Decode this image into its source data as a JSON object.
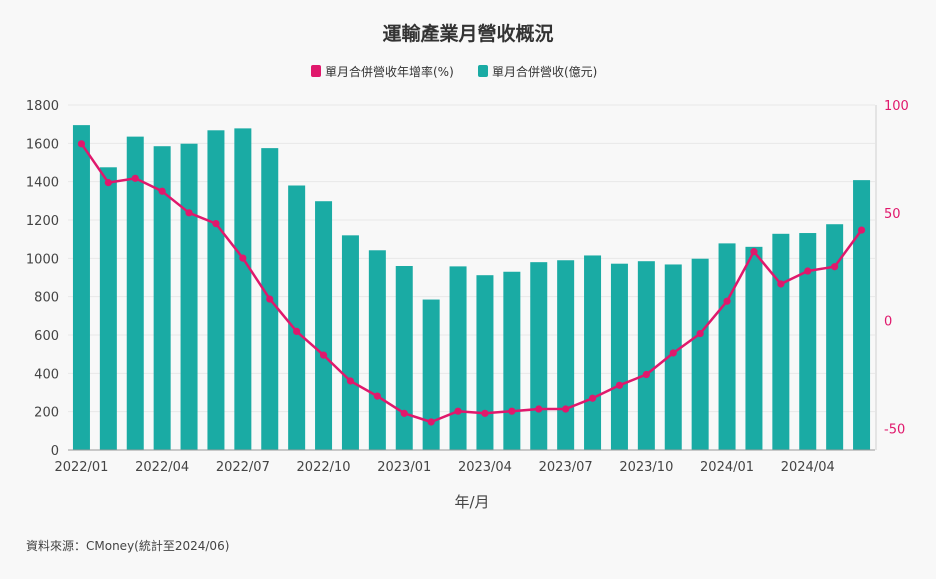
{
  "chart_data": {
    "type": "bar+line",
    "title": "運輸產業月營收概況",
    "xlabel": "年/月",
    "source": "資料來源：CMoney(統計至2024/06)",
    "categories": [
      "2022/01",
      "2022/02",
      "2022/03",
      "2022/04",
      "2022/05",
      "2022/06",
      "2022/07",
      "2022/08",
      "2022/09",
      "2022/10",
      "2022/11",
      "2022/12",
      "2023/01",
      "2023/02",
      "2023/03",
      "2023/04",
      "2023/05",
      "2023/06",
      "2023/07",
      "2023/08",
      "2023/09",
      "2023/10",
      "2023/11",
      "2023/12",
      "2024/01",
      "2024/02",
      "2024/03",
      "2024/04",
      "2024/05",
      "2024/06"
    ],
    "x_tick_labels": [
      "2022/01",
      "2022/04",
      "2022/07",
      "2022/10",
      "2023/01",
      "2023/04",
      "2023/07",
      "2023/10",
      "2024/01",
      "2024/04"
    ],
    "series": [
      {
        "name": "單月合併營收年增率(%)",
        "type": "line",
        "axis": "right",
        "color": "#e0186c",
        "values": [
          82,
          64,
          66,
          60,
          50,
          45,
          29,
          10,
          -5,
          -16,
          -28,
          -35,
          -43,
          -47,
          -42,
          -43,
          -42,
          -41,
          -41,
          -36,
          -30,
          -25,
          -15,
          -6,
          9,
          32,
          17,
          23,
          25,
          42
        ]
      },
      {
        "name": "單月合併營收(億元)",
        "type": "bar",
        "axis": "left",
        "color": "#1aaba4",
        "values": [
          1695,
          1475,
          1635,
          1585,
          1598,
          1668,
          1678,
          1575,
          1380,
          1298,
          1120,
          1042,
          960,
          785,
          958,
          912,
          930,
          980,
          990,
          1015,
          972,
          985,
          968,
          998,
          1078,
          1060,
          1128,
          1132,
          1178,
          1408
        ]
      }
    ],
    "y_left": {
      "range": [
        0,
        1800
      ],
      "ticks": [
        "0",
        "200",
        "400",
        "600",
        "800",
        "1000",
        "1200",
        "1400",
        "1600",
        "1800"
      ]
    },
    "y_right": {
      "range": [
        -60,
        100
      ],
      "ticks": [
        "-50",
        "0",
        "50",
        "100"
      ]
    },
    "grid": true,
    "legend_position": "top-center"
  }
}
